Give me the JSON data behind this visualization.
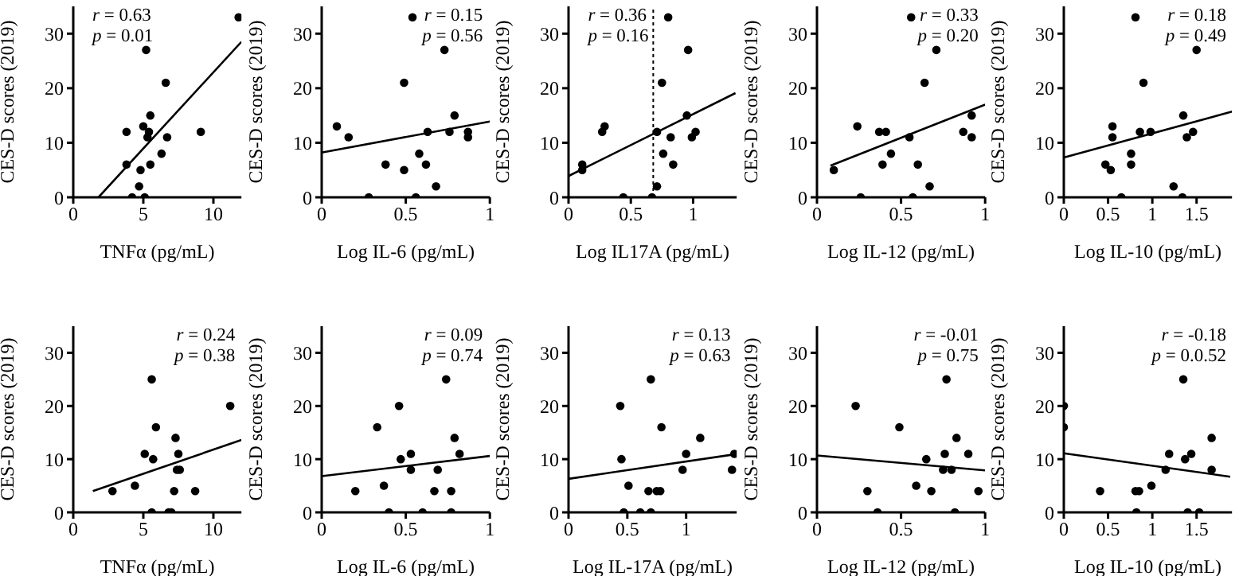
{
  "chart_data": [
    {
      "type": "scatter",
      "xlabel": "TNFα (pg/mL)",
      "ylabel": "CES-D scores (2019)",
      "annotations": [
        "r = 0.63",
        "p = 0.01"
      ],
      "xlim": [
        0,
        12
      ],
      "xticks": [
        0,
        5,
        10
      ],
      "ylim": [
        0,
        35
      ],
      "yticks": [
        0,
        10,
        20,
        30
      ],
      "series": [
        {
          "marker": "circle",
          "color": "#000000",
          "x": [
            11.8,
            5.2,
            6.6,
            5.5,
            3.8,
            5.0,
            5.4,
            5.3,
            6.7,
            9.1,
            3.8,
            5.5,
            6.3,
            4.8,
            4.7,
            4.2,
            5.1
          ],
          "values": [
            33,
            27,
            21,
            15,
            12,
            13,
            12,
            11,
            11,
            12,
            6,
            6,
            8,
            5,
            2,
            0,
            0
          ]
        },
        {
          "type": "line",
          "color": "#000000",
          "x": [
            1.8,
            12
          ],
          "values": [
            0,
            28.5
          ]
        }
      ]
    },
    {
      "type": "scatter",
      "xlabel": "Log IL-6 (pg/mL)",
      "ylabel": "CES-D scores (2019)",
      "annotations": [
        "r = 0.15",
        "p = 0.56"
      ],
      "xlim": [
        0,
        1
      ],
      "xticks": [
        0,
        0.5,
        1
      ],
      "ylim": [
        0,
        35
      ],
      "yticks": [
        0,
        10,
        20,
        30
      ],
      "series": [
        {
          "marker": "circle",
          "color": "#000000",
          "x": [
            0.09,
            0.16,
            0.28,
            0.38,
            0.49,
            0.49,
            0.54,
            0.73,
            0.63,
            0.58,
            0.62,
            0.68,
            0.56,
            0.79,
            0.76,
            0.87,
            0.87
          ],
          "values": [
            13,
            11,
            0,
            6,
            5,
            21,
            33,
            27,
            12,
            8,
            6,
            2,
            0,
            15,
            12,
            12,
            11
          ]
        },
        {
          "type": "line",
          "color": "#000000",
          "x": [
            0,
            1
          ],
          "values": [
            8.2,
            13.9
          ]
        }
      ]
    },
    {
      "type": "scatter",
      "xlabel": "Log IL17A (pg/mL)",
      "ylabel": "CES-D scores (2019)",
      "annotations": [
        "r = 0.36",
        "p = 0.16"
      ],
      "xlim": [
        0,
        1.35
      ],
      "xticks": [
        0,
        0.5,
        1
      ],
      "ylim": [
        0,
        35
      ],
      "yticks": [
        0,
        10,
        20,
        30
      ],
      "ref_lines": [
        {
          "axis": "x",
          "value": 0.68,
          "color": "#000000",
          "line_style": "dotted"
        }
      ],
      "series": [
        {
          "marker": "circle",
          "color": "#000000",
          "x": [
            0.8,
            0.96,
            0.75,
            0.95,
            0.27,
            0.29,
            0.71,
            0.82,
            0.99,
            1.02,
            0.76,
            0.84,
            0.11,
            0.11,
            0.71,
            0.44,
            0.67
          ],
          "values": [
            33,
            27,
            21,
            15,
            12,
            13,
            12,
            11,
            11,
            12,
            8,
            6,
            6,
            5,
            2,
            0,
            0
          ]
        },
        {
          "type": "line",
          "color": "#000000",
          "x": [
            0,
            1.34
          ],
          "values": [
            3.9,
            19.1
          ]
        }
      ]
    },
    {
      "type": "scatter",
      "xlabel": "Log IL-12 (pg/mL)",
      "ylabel": "CES-D scores (2019)",
      "annotations": [
        "r = 0.33",
        "p = 0.20"
      ],
      "xlim": [
        0,
        1
      ],
      "xticks": [
        0,
        0.5,
        1
      ],
      "ylim": [
        0,
        35
      ],
      "yticks": [
        0,
        10,
        20,
        30
      ],
      "series": [
        {
          "marker": "circle",
          "color": "#000000",
          "x": [
            0.56,
            0.71,
            0.64,
            0.24,
            0.37,
            0.41,
            0.55,
            0.87,
            0.92,
            0.92,
            0.44,
            0.39,
            0.6,
            0.1,
            0.67,
            0.26,
            0.57
          ],
          "values": [
            33,
            27,
            21,
            13,
            12,
            12,
            11,
            12,
            15,
            11,
            8,
            6,
            6,
            5,
            2,
            0,
            0
          ]
        },
        {
          "type": "line",
          "color": "#000000",
          "x": [
            0.08,
            1
          ],
          "values": [
            5.8,
            17
          ]
        }
      ]
    },
    {
      "type": "scatter",
      "xlabel": "Log IL-10 (pg/mL)",
      "ylabel": "CES-D scores (2019)",
      "annotations": [
        "r = 0.18",
        "p = 0.49"
      ],
      "xlim": [
        0,
        1.9
      ],
      "xticks": [
        0,
        0.5,
        1,
        1.5
      ],
      "ylim": [
        0,
        35
      ],
      "yticks": [
        0,
        10,
        20,
        30
      ],
      "series": [
        {
          "marker": "circle",
          "color": "#000000",
          "x": [
            0.81,
            1.5,
            0.9,
            1.35,
            0.55,
            0.55,
            0.86,
            0.98,
            1.46,
            1.39,
            0.76,
            0.76,
            0.47,
            0.53,
            1.24,
            0.65,
            1.34
          ],
          "values": [
            33,
            27,
            21,
            15,
            13,
            11,
            12,
            12,
            12,
            11,
            8,
            6,
            6,
            5,
            2,
            0,
            0
          ]
        },
        {
          "type": "line",
          "color": "#000000",
          "x": [
            0,
            1.9
          ],
          "values": [
            7.3,
            15.7
          ]
        }
      ]
    },
    {
      "type": "scatter",
      "xlabel": "TNFα (pg/mL)",
      "ylabel": "CES-D scores (2019)",
      "annotations": [
        "r = 0.24",
        "p = 0.38"
      ],
      "xlim": [
        0,
        12
      ],
      "xticks": [
        0,
        5,
        10
      ],
      "ylim": [
        0,
        35
      ],
      "yticks": [
        0,
        10,
        20,
        30
      ],
      "series": [
        {
          "marker": "circle",
          "color": "#000000",
          "x": [
            2.8,
            4.4,
            5.1,
            5.7,
            5.6,
            5.9,
            7.3,
            7.5,
            7.4,
            7.6,
            7.2,
            8.7,
            11.2,
            5.6,
            6.8,
            7.0
          ],
          "values": [
            4,
            5,
            11,
            10,
            25,
            16,
            14,
            11,
            8,
            8,
            4,
            4,
            20,
            0,
            0,
            0
          ]
        },
        {
          "type": "line",
          "color": "#000000",
          "x": [
            1.4,
            12
          ],
          "values": [
            4,
            13.6
          ]
        }
      ]
    },
    {
      "type": "scatter",
      "xlabel": "Log IL-6 (pg/mL)",
      "ylabel": "CES-D scores (2019)",
      "annotations": [
        "r = 0.09",
        "p = 0.74"
      ],
      "xlim": [
        0,
        1
      ],
      "xticks": [
        0,
        0.5,
        1
      ],
      "ylim": [
        0,
        35
      ],
      "yticks": [
        0,
        10,
        20,
        30
      ],
      "series": [
        {
          "marker": "circle",
          "color": "#000000",
          "x": [
            0.2,
            0.33,
            0.37,
            0.4,
            0.46,
            0.47,
            0.53,
            0.53,
            0.6,
            0.69,
            0.67,
            0.74,
            0.77,
            0.77,
            0.79,
            0.82
          ],
          "values": [
            4,
            16,
            5,
            0,
            20,
            10,
            11,
            8,
            0,
            8,
            4,
            25,
            4,
            0,
            14,
            11
          ]
        },
        {
          "type": "line",
          "color": "#000000",
          "x": [
            0,
            1
          ],
          "values": [
            6.8,
            10.6
          ]
        }
      ]
    },
    {
      "type": "scatter",
      "xlabel": "Log IL-17A (pg/mL)",
      "ylabel": "CES-D scores (2019)",
      "annotations": [
        "r = 0.13",
        "p = 0.63"
      ],
      "xlim": [
        0,
        1.43
      ],
      "xticks": [
        0,
        0.5,
        1
      ],
      "ylim": [
        0,
        35
      ],
      "yticks": [
        0,
        10,
        20,
        30
      ],
      "series": [
        {
          "marker": "circle",
          "color": "#000000",
          "x": [
            0.44,
            0.45,
            0.51,
            0.47,
            0.61,
            0.7,
            0.7,
            0.68,
            0.75,
            0.78,
            0.79,
            1.0,
            0.97,
            1.12,
            1.39,
            1.41
          ],
          "values": [
            20,
            10,
            5,
            0,
            0,
            0,
            25,
            4,
            4,
            4,
            16,
            11,
            8,
            14,
            8,
            11
          ]
        },
        {
          "type": "line",
          "color": "#000000",
          "x": [
            0,
            1.41
          ],
          "values": [
            6.3,
            10.9
          ]
        }
      ]
    },
    {
      "type": "scatter",
      "xlabel": "Log IL-12 (pg/mL)",
      "ylabel": "CES-D scores (2019)",
      "annotations": [
        "r = -0.01",
        "p = 0.75"
      ],
      "xlim": [
        0,
        1
      ],
      "xticks": [
        0,
        0.5,
        1
      ],
      "ylim": [
        0,
        35
      ],
      "yticks": [
        0,
        10,
        20,
        30
      ],
      "series": [
        {
          "marker": "circle",
          "color": "#000000",
          "x": [
            0.23,
            0.3,
            0.36,
            0.49,
            0.59,
            0.65,
            0.68,
            0.75,
            0.8,
            0.76,
            0.77,
            0.83,
            0.82,
            0.9,
            0.96
          ],
          "values": [
            20,
            4,
            0,
            16,
            5,
            10,
            4,
            8,
            8,
            11,
            25,
            14,
            0,
            11,
            4
          ]
        },
        {
          "type": "line",
          "color": "#000000",
          "x": [
            0,
            1
          ],
          "values": [
            10.7,
            7.9
          ]
        }
      ]
    },
    {
      "type": "scatter",
      "xlabel": "Log IL-10 (pg/mL)",
      "ylabel": "CES-D scores (2019)",
      "annotations": [
        "r = -0.18",
        "p = 0.0.52"
      ],
      "xlim": [
        0,
        1.9
      ],
      "xticks": [
        0,
        0.5,
        1,
        1.5
      ],
      "ylim": [
        0,
        35
      ],
      "yticks": [
        0,
        10,
        20,
        30
      ],
      "series": [
        {
          "marker": "circle",
          "color": "#000000",
          "x": [
            0,
            0,
            0.41,
            0.81,
            0.85,
            0.82,
            0.99,
            1.15,
            1.19,
            1.35,
            1.37,
            1.44,
            1.4,
            1.53,
            1.67,
            1.67
          ],
          "values": [
            20,
            16,
            4,
            4,
            4,
            0,
            5,
            8,
            11,
            25,
            10,
            11,
            0,
            0,
            14,
            8
          ]
        },
        {
          "type": "line",
          "color": "#000000",
          "x": [
            0,
            1.88
          ],
          "values": [
            11.1,
            6.7
          ]
        }
      ]
    }
  ]
}
